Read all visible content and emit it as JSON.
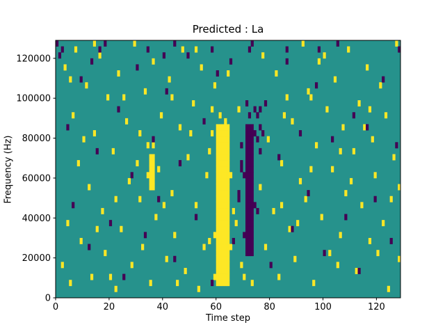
{
  "chart_data": {
    "type": "heatmap",
    "title": "Predicted : La",
    "xlabel": "Time step",
    "ylabel": "Frequency (Hz)",
    "x_range": [
      0,
      129
    ],
    "y_range": [
      0,
      129000
    ],
    "x_ticks": [
      0,
      20,
      40,
      60,
      80,
      100,
      120
    ],
    "x_tick_labels": [
      "0",
      "20",
      "40",
      "60",
      "80",
      "100",
      "120"
    ],
    "y_ticks": [
      0,
      20000,
      40000,
      60000,
      80000,
      100000,
      120000
    ],
    "y_tick_labels": [
      "0",
      "20000",
      "40000",
      "60000",
      "80000",
      "100000",
      "120000"
    ],
    "grid": {
      "ncols": 129,
      "nrows": 43,
      "x_step": 1,
      "y_step": 3000
    },
    "legend": "none",
    "colors": {
      "background": "#26928c",
      "high": "#fde725",
      "low": "#440154",
      "figure_bg": "#ffffff",
      "axis": "#000000"
    },
    "bands": [
      {
        "color": "high",
        "col_start": 60,
        "col_end": 64,
        "row_start": 2,
        "row_end": 28,
        "note": "strong yellow vertical band around time step 60-65, freq ~6000-87000"
      },
      {
        "color": "high",
        "col_start": 35,
        "col_end": 36,
        "row_start": 18,
        "row_end": 23,
        "note": "small yellow blob near time step 35, freq ~55000-72000"
      },
      {
        "color": "low",
        "col_start": 71,
        "col_end": 73,
        "row_start": 7,
        "row_end": 28,
        "note": "dark purple vertical band around time step 71-74, freq ~21000-87000"
      }
    ],
    "high_cells": [
      [
        2,
        5
      ],
      [
        3,
        38
      ],
      [
        4,
        12
      ],
      [
        5,
        2
      ],
      [
        6,
        30
      ],
      [
        7,
        41
      ],
      [
        8,
        22
      ],
      [
        9,
        9
      ],
      [
        11,
        35
      ],
      [
        12,
        18
      ],
      [
        13,
        3
      ],
      [
        14,
        27
      ],
      [
        16,
        40
      ],
      [
        17,
        14
      ],
      [
        18,
        7
      ],
      [
        19,
        33
      ],
      [
        21,
        24
      ],
      [
        22,
        1
      ],
      [
        23,
        37
      ],
      [
        24,
        11
      ],
      [
        26,
        29
      ],
      [
        27,
        19
      ],
      [
        28,
        5
      ],
      [
        29,
        42
      ],
      [
        31,
        16
      ],
      [
        32,
        8
      ],
      [
        33,
        34
      ],
      [
        34,
        25
      ],
      [
        35,
        2
      ],
      [
        36,
        39
      ],
      [
        37,
        13
      ],
      [
        38,
        21
      ],
      [
        39,
        30
      ],
      [
        41,
        6
      ],
      [
        42,
        36
      ],
      [
        43,
        17
      ],
      [
        44,
        10
      ],
      [
        46,
        28
      ],
      [
        47,
        41
      ],
      [
        48,
        4
      ],
      [
        49,
        23
      ],
      [
        51,
        32
      ],
      [
        52,
        15
      ],
      [
        53,
        1
      ],
      [
        54,
        38
      ],
      [
        56,
        20
      ],
      [
        57,
        9
      ],
      [
        58,
        27
      ],
      [
        59,
        35
      ],
      [
        67,
        12
      ],
      [
        68,
        31
      ],
      [
        69,
        5
      ],
      [
        76,
        18
      ],
      [
        77,
        40
      ],
      [
        78,
        8
      ],
      [
        79,
        26
      ],
      [
        81,
        14
      ],
      [
        82,
        37
      ],
      [
        83,
        3
      ],
      [
        84,
        22
      ],
      [
        86,
        33
      ],
      [
        87,
        11
      ],
      [
        88,
        29
      ],
      [
        89,
        6
      ],
      [
        91,
        19
      ],
      [
        92,
        42
      ],
      [
        93,
        16
      ],
      [
        94,
        34
      ],
      [
        96,
        2
      ],
      [
        97,
        25
      ],
      [
        98,
        39
      ],
      [
        99,
        13
      ],
      [
        101,
        31
      ],
      [
        102,
        7
      ],
      [
        103,
        21
      ],
      [
        104,
        36
      ],
      [
        106,
        10
      ],
      [
        107,
        28
      ],
      [
        108,
        17
      ],
      [
        109,
        41
      ],
      [
        111,
        24
      ],
      [
        112,
        4
      ],
      [
        113,
        32
      ],
      [
        114,
        15
      ],
      [
        116,
        38
      ],
      [
        117,
        9
      ],
      [
        118,
        26
      ],
      [
        119,
        20
      ],
      [
        121,
        35
      ],
      [
        122,
        12
      ],
      [
        123,
        30
      ],
      [
        124,
        1
      ],
      [
        126,
        23
      ],
      [
        127,
        42
      ],
      [
        128,
        18
      ],
      [
        59,
        3
      ],
      [
        59,
        10
      ],
      [
        65,
        8
      ],
      [
        65,
        20
      ],
      [
        66,
        14
      ],
      [
        61,
        30
      ],
      [
        63,
        29
      ],
      [
        34,
        20
      ],
      [
        36,
        25
      ],
      [
        57,
        24
      ],
      [
        58,
        31
      ],
      [
        10,
        26
      ],
      [
        15,
        11
      ],
      [
        20,
        3
      ],
      [
        25,
        33
      ],
      [
        30,
        22
      ],
      [
        40,
        15
      ],
      [
        45,
        2
      ],
      [
        50,
        27
      ],
      [
        55,
        8
      ],
      [
        70,
        3
      ],
      [
        85,
        30
      ],
      [
        90,
        12
      ],
      [
        95,
        21
      ],
      [
        100,
        40
      ],
      [
        105,
        5
      ],
      [
        110,
        19
      ],
      [
        115,
        28
      ],
      [
        120,
        7
      ],
      [
        125,
        16
      ],
      [
        5,
        36
      ],
      [
        14,
        42
      ],
      [
        22,
        16
      ],
      [
        31,
        27
      ],
      [
        43,
        33
      ],
      [
        52,
        41
      ],
      [
        64,
        37
      ],
      [
        73,
        2
      ],
      [
        84,
        15
      ],
      [
        95,
        33
      ],
      [
        106,
        24
      ],
      [
        117,
        31
      ],
      [
        128,
        6
      ]
    ],
    "low_cells": [
      [
        0,
        42
      ],
      [
        1,
        40
      ],
      [
        2,
        41
      ],
      [
        4,
        28
      ],
      [
        6,
        15
      ],
      [
        9,
        36
      ],
      [
        12,
        8
      ],
      [
        13,
        39
      ],
      [
        15,
        24
      ],
      [
        16,
        41
      ],
      [
        18,
        42
      ],
      [
        20,
        12
      ],
      [
        23,
        31
      ],
      [
        25,
        3
      ],
      [
        28,
        20
      ],
      [
        30,
        38
      ],
      [
        33,
        10
      ],
      [
        34,
        41
      ],
      [
        36,
        26
      ],
      [
        38,
        16
      ],
      [
        40,
        40
      ],
      [
        41,
        34
      ],
      [
        44,
        6
      ],
      [
        44,
        42
      ],
      [
        46,
        22
      ],
      [
        49,
        40
      ],
      [
        52,
        13
      ],
      [
        55,
        29
      ],
      [
        58,
        2
      ],
      [
        58,
        41
      ],
      [
        60,
        37
      ],
      [
        65,
        39
      ],
      [
        66,
        9
      ],
      [
        68,
        16
      ],
      [
        68,
        17
      ],
      [
        69,
        21
      ],
      [
        69,
        22
      ],
      [
        69,
        25
      ],
      [
        70,
        10
      ],
      [
        70,
        20
      ],
      [
        71,
        32
      ],
      [
        72,
        30
      ],
      [
        72,
        41
      ],
      [
        73,
        42
      ],
      [
        74,
        15
      ],
      [
        74,
        27
      ],
      [
        74,
        31
      ],
      [
        75,
        14
      ],
      [
        75,
        26
      ],
      [
        75,
        30
      ],
      [
        76,
        24
      ],
      [
        76,
        28
      ],
      [
        76,
        31
      ],
      [
        77,
        27
      ],
      [
        78,
        32
      ],
      [
        80,
        5
      ],
      [
        83,
        23
      ],
      [
        86,
        39
      ],
      [
        86,
        41
      ],
      [
        88,
        11
      ],
      [
        91,
        27
      ],
      [
        94,
        17
      ],
      [
        97,
        35
      ],
      [
        98,
        41
      ],
      [
        100,
        7
      ],
      [
        103,
        26
      ],
      [
        105,
        42
      ],
      [
        108,
        13
      ],
      [
        111,
        30
      ],
      [
        113,
        4
      ],
      [
        116,
        28
      ],
      [
        119,
        16
      ],
      [
        122,
        36
      ],
      [
        125,
        9
      ],
      [
        127,
        25
      ],
      [
        128,
        41
      ]
    ]
  }
}
